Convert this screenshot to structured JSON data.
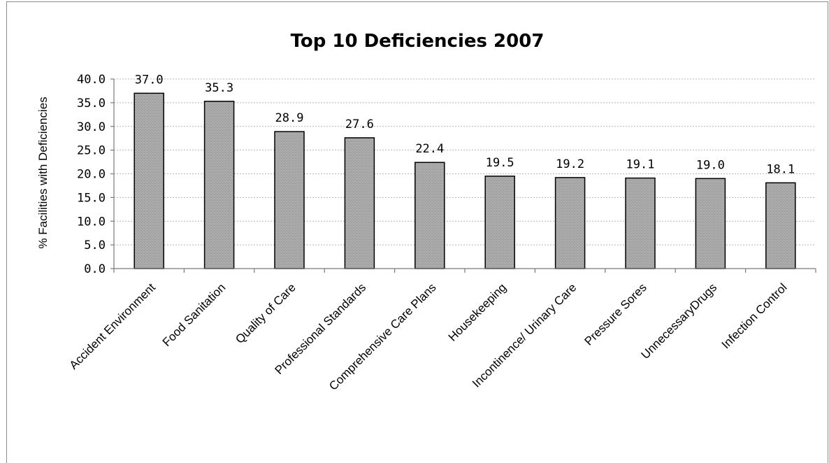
{
  "chart_data": {
    "type": "bar",
    "title": "Top 10 Deficiencies 2007",
    "xlabel": "",
    "ylabel": "% Facilities  with Deficiencies",
    "ylim": [
      0,
      40
    ],
    "yticks": [
      "0.0",
      "5.0",
      "10.0",
      "15.0",
      "20.0",
      "25.0",
      "30.0",
      "35.0",
      "40.0"
    ],
    "grid": true,
    "legend": "none",
    "bar_color": "#a6a6a6",
    "categories": [
      "Accident Environment",
      "Food Sanitation",
      "Quality of Care",
      "Professional Standards",
      "Comprehensive Care Plans",
      "Housekeeping",
      "Incontinence/ Urinary Care",
      "Pressure Sores",
      "UnnecessaryDrugs",
      "Infection Control"
    ],
    "values": [
      37.0,
      35.3,
      28.9,
      27.6,
      22.4,
      19.5,
      19.2,
      19.1,
      19.0,
      18.1
    ],
    "data_labels": [
      "37.0",
      "35.3",
      "28.9",
      "27.6",
      "22.4",
      "19.5",
      "19.2",
      "19.1",
      "19.0",
      "18.1"
    ]
  }
}
